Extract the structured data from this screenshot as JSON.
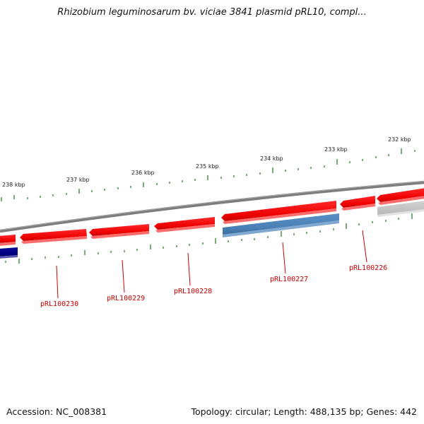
{
  "title": "Rhizobium leguminosarum bv. viciae 3841 plasmid pRL10, compl...",
  "footer": {
    "accession": "Accession: NC_008381",
    "summary": "Topology: circular; Length: 488,135 bp; Genes: 442"
  },
  "colors": {
    "forward_gene": "#ee0000",
    "reverse_gene": "#4a7fb5",
    "other_reverse_gene": "#000080",
    "pseudo_gene": "#c4c4c4",
    "backbone": "#808080",
    "tick": "#1a7a1a",
    "gene_label": "#cc0000"
  },
  "kbp_labels": [
    "238 kbp",
    "237 kbp",
    "236 kbp",
    "235 kbp",
    "234 kbp",
    "233 kbp",
    "232 kbp"
  ],
  "gene_labels": [
    "pRL100230",
    "pRL100229",
    "pRL100228",
    "pRL100227",
    "pRL100226"
  ]
}
